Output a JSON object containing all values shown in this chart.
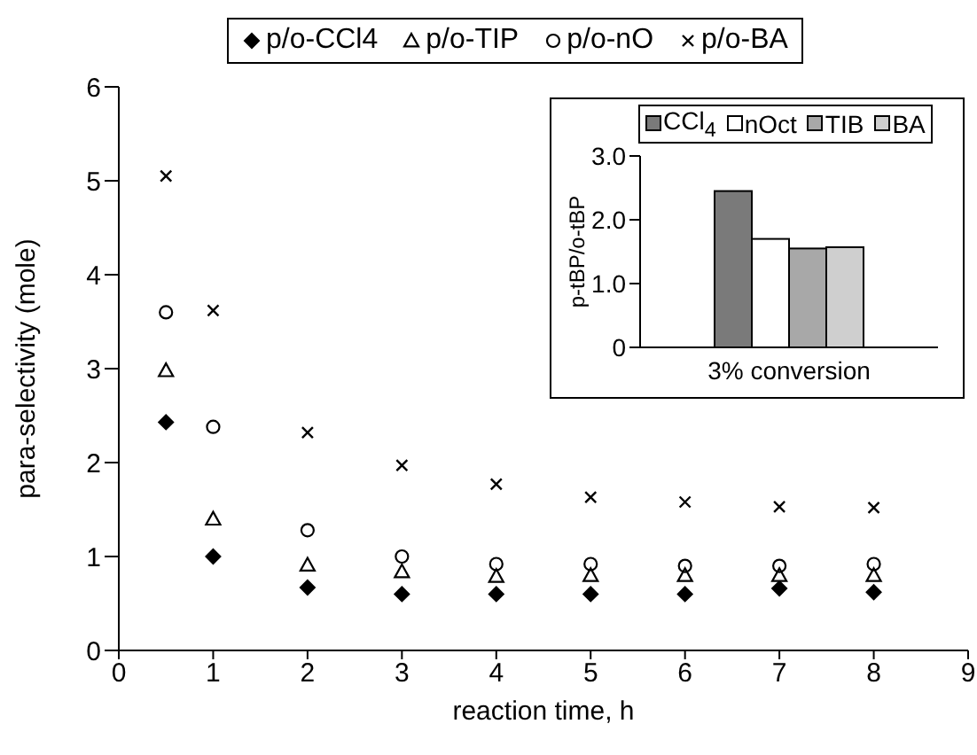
{
  "chart_data": [
    {
      "type": "scatter",
      "xlabel": "reaction time, h",
      "ylabel": "para-selectivity (mole)",
      "x": [
        0.5,
        1,
        2,
        3,
        4,
        5,
        6,
        7,
        8
      ],
      "xlim": [
        0,
        9
      ],
      "xticks": [
        0,
        1,
        2,
        3,
        4,
        5,
        6,
        7,
        8,
        9
      ],
      "ylim": [
        0,
        6
      ],
      "yticks": [
        0,
        1,
        2,
        3,
        4,
        5,
        6
      ],
      "legend": "top",
      "grid": false,
      "series": [
        {
          "name": "p/o-CCl4",
          "color": "#000000",
          "marker": "diamond",
          "values": [
            2.43,
            1.0,
            0.67,
            0.6,
            0.6,
            0.6,
            0.6,
            0.66,
            0.62
          ]
        },
        {
          "name": "p/o-TIP",
          "color": "#000000",
          "marker": "triangle",
          "values": [
            2.98,
            1.4,
            0.91,
            0.84,
            0.79,
            0.8,
            0.8,
            0.8,
            0.8
          ]
        },
        {
          "name": "p/o-nO",
          "color": "#000000",
          "marker": "circle",
          "values": [
            3.6,
            2.38,
            1.28,
            1.0,
            0.92,
            0.92,
            0.9,
            0.9,
            0.92
          ]
        },
        {
          "name": "p/o-BA",
          "color": "#000000",
          "marker": "cross",
          "values": [
            5.05,
            3.62,
            2.32,
            1.97,
            1.77,
            1.63,
            1.58,
            1.53,
            1.52
          ]
        }
      ]
    },
    {
      "type": "bar",
      "ylabel": "p-tBP/o-tBP",
      "categories": [
        "3% conversion"
      ],
      "ylim": [
        0,
        3
      ],
      "yticks": [
        {
          "value": 0,
          "label": "0"
        },
        {
          "value": 1,
          "label": "1.0"
        },
        {
          "value": 2,
          "label": "2.0"
        },
        {
          "value": 3,
          "label": "3.0"
        }
      ],
      "legend": "top",
      "grid": false,
      "series": [
        {
          "name": "CCl$_{4}$",
          "color": "#7a7a7a",
          "values": [
            2.45
          ]
        },
        {
          "name": "nOct",
          "color": "#ffffff",
          "values": [
            1.7
          ]
        },
        {
          "name": "TIB",
          "color": "#a8a8a8",
          "values": [
            1.55
          ]
        },
        {
          "name": "BA",
          "color": "#cfcfcf",
          "values": [
            1.57
          ]
        }
      ]
    }
  ]
}
